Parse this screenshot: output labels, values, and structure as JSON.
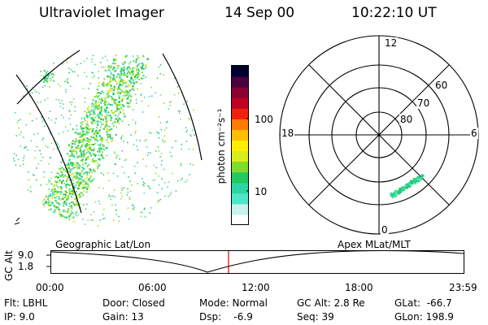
{
  "header": {
    "instrument": "Ultraviolet Imager",
    "date": "14 Sep 00",
    "time": "10:22:10 UT"
  },
  "colorbar": {
    "unit_label": "photon cm⁻²s⁻¹",
    "tick_high": "100",
    "tick_low": "10",
    "colors": [
      "#ffffff",
      "#c9f1ec",
      "#4ee6c9",
      "#2fd5a0",
      "#22c860",
      "#7fdc2a",
      "#d9ec1c",
      "#ffee00",
      "#ffbe00",
      "#ff7a00",
      "#f02010",
      "#c00020",
      "#8a0030",
      "#4a0040",
      "#000030"
    ]
  },
  "geo_panel": {
    "label": "Geographic Lat/Lon"
  },
  "polar_panel": {
    "label": "Apex MLat/MLT",
    "mlt_labels": {
      "top": "12",
      "bottom": "0",
      "left": "18",
      "right": "6"
    },
    "lat_labels": [
      "60",
      "70",
      "80"
    ]
  },
  "alt_plot": {
    "ylabel": "GC Alt",
    "yticks": [
      "9.0",
      "1.8"
    ],
    "xticks": [
      "00:00",
      "06:00",
      "12:00",
      "18:00",
      "23:59"
    ],
    "current_time_marker": "10:22"
  },
  "footer": {
    "flt": "Flt: LBHL",
    "ip": "IP:  9.0",
    "door": "Door: Closed",
    "gain": "Gain: 13",
    "mode": "Mode: Normal",
    "dsp": "Dsp:    -6.9",
    "gc_alt": "GC Alt: 2.8 Re",
    "seq": "Seq: 39",
    "glat": "GLat:  -66.7",
    "glon": "GLon: 198.9"
  }
}
